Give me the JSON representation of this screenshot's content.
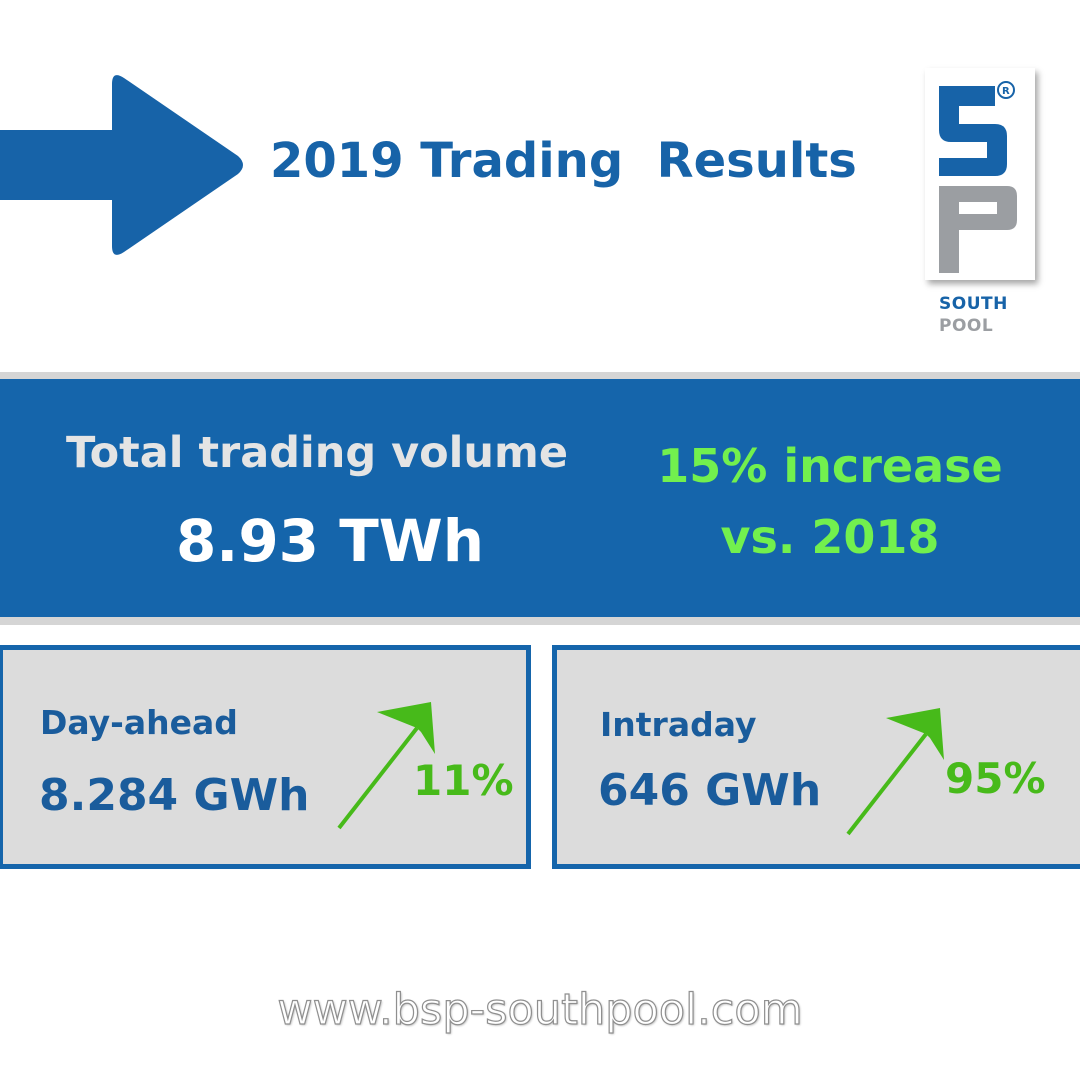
{
  "header": {
    "title": "2019 Trading  Results",
    "arrow_color": "#1763a8"
  },
  "logo": {
    "line1": "SOUTH",
    "line2": "POOL",
    "registered_mark": "®",
    "blue": "#1763a8",
    "gray": "#9b9ea2"
  },
  "banner": {
    "label": "Total trading volume",
    "value": "8.93 TWh",
    "increase_line1": "15% increase",
    "increase_line2": "vs. 2018",
    "background": "#1565ab",
    "accent": "#72f04e"
  },
  "cards": [
    {
      "label": "Day-ahead",
      "value": "8.284 GWh",
      "change": "11%",
      "trend_icon": "trend-up-arrow-icon"
    },
    {
      "label": "Intraday",
      "value": "646 GWh",
      "change": "95%",
      "trend_icon": "trend-up-arrow-icon"
    }
  ],
  "footer": {
    "url": "www.bsp-southpool.com"
  }
}
